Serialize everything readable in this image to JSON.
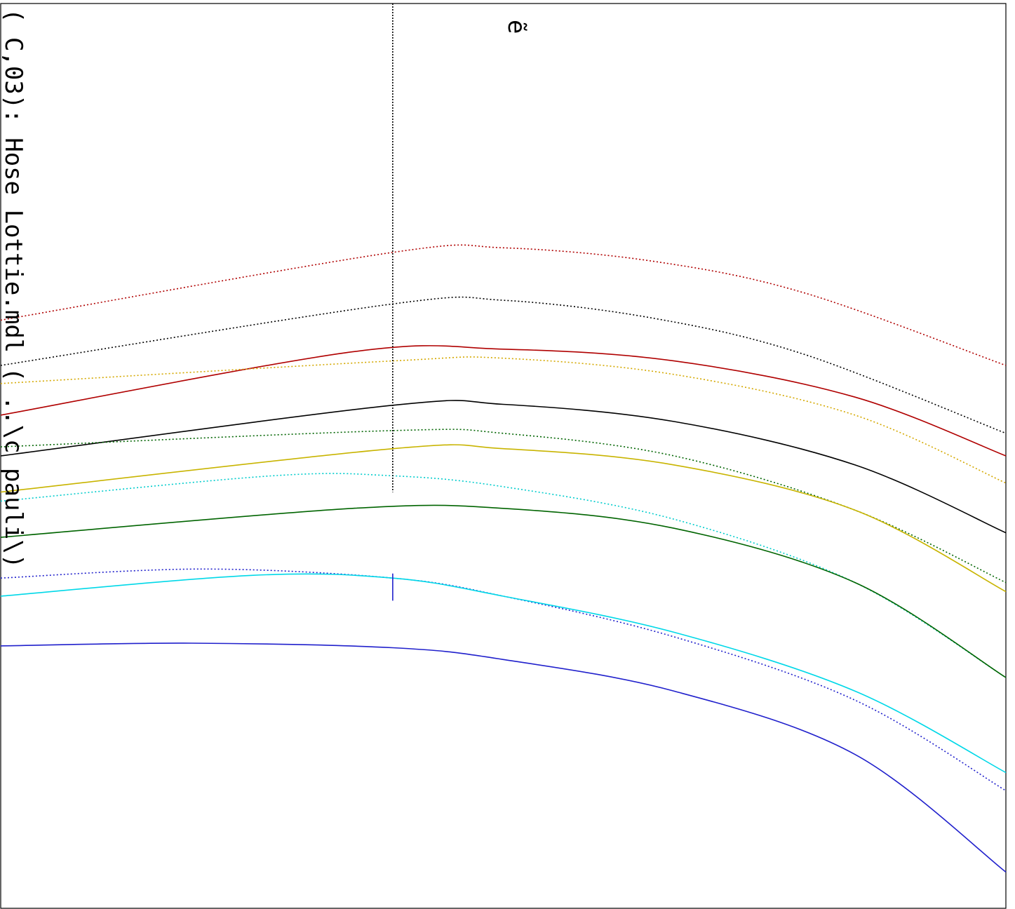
{
  "chart_data": {
    "type": "line",
    "title": "( C,03): Hose Lottie.mdl  ( ..\\c pauli\\)",
    "top_glyph": "ẽ",
    "xlabel": "",
    "ylabel": "",
    "grid": false,
    "legend": "none",
    "marker_x": 0.39,
    "series": [
      {
        "color": "#b00000",
        "style": "dotted",
        "x": [
          0,
          0.39,
          0.5,
          0.65,
          0.8,
          1.0
        ],
        "y": [
          0.65,
          0.725,
          0.73,
          0.715,
          0.68,
          0.6
        ]
      },
      {
        "color": "#000000",
        "style": "dotted",
        "x": [
          0,
          0.39,
          0.5,
          0.65,
          0.8,
          1.0
        ],
        "y": [
          0.6,
          0.668,
          0.672,
          0.652,
          0.612,
          0.525
        ]
      },
      {
        "color": "#b00000",
        "style": "solid",
        "x": [
          0,
          0.35,
          0.5,
          0.67,
          0.85,
          1.0
        ],
        "y": [
          0.545,
          0.615,
          0.618,
          0.605,
          0.565,
          0.5
        ]
      },
      {
        "color": "#d4a800",
        "style": "dotted",
        "x": [
          0,
          0.39,
          0.5,
          0.67,
          0.85,
          1.0
        ],
        "y": [
          0.58,
          0.605,
          0.608,
          0.59,
          0.545,
          0.47
        ]
      },
      {
        "color": "#000000",
        "style": "solid",
        "x": [
          0,
          0.39,
          0.5,
          0.67,
          0.85,
          1.0
        ],
        "y": [
          0.5,
          0.556,
          0.557,
          0.538,
          0.49,
          0.415
        ]
      },
      {
        "color": "#006400",
        "style": "dotted",
        "x": [
          0,
          0.39,
          0.5,
          0.67,
          0.85,
          1.0
        ],
        "y": [
          0.51,
          0.528,
          0.525,
          0.5,
          0.44,
          0.36
        ]
      },
      {
        "color": "#c8b400",
        "style": "solid",
        "x": [
          0,
          0.39,
          0.5,
          0.67,
          0.85,
          1.0
        ],
        "y": [
          0.46,
          0.508,
          0.508,
          0.49,
          0.44,
          0.35
        ]
      },
      {
        "color": "#00cccc",
        "style": "dotted",
        "x": [
          0,
          0.27,
          0.39,
          0.5,
          0.67,
          0.85,
          1.0
        ],
        "y": [
          0.45,
          0.478,
          0.478,
          0.466,
          0.43,
          0.36,
          0.255
        ]
      },
      {
        "color": "#006400",
        "style": "solid",
        "x": [
          0,
          0.35,
          0.5,
          0.67,
          0.85,
          1.0
        ],
        "y": [
          0.41,
          0.442,
          0.442,
          0.42,
          0.36,
          0.255
        ]
      },
      {
        "color": "#2020cc",
        "style": "dotted",
        "x": [
          0,
          0.2,
          0.39,
          0.5,
          0.67,
          0.85,
          1.0
        ],
        "y": [
          0.365,
          0.375,
          0.365,
          0.345,
          0.3,
          0.23,
          0.13
        ]
      },
      {
        "color": "#00d8e8",
        "style": "solid",
        "x": [
          0,
          0.25,
          0.39,
          0.5,
          0.67,
          0.85,
          1.0
        ],
        "y": [
          0.345,
          0.368,
          0.365,
          0.345,
          0.305,
          0.24,
          0.15
        ]
      },
      {
        "color": "#2020cc",
        "style": "solid",
        "x": [
          0,
          0.19,
          0.39,
          0.5,
          0.67,
          0.85,
          1.0
        ],
        "y": [
          0.29,
          0.293,
          0.288,
          0.275,
          0.24,
          0.17,
          0.04
        ]
      }
    ]
  }
}
